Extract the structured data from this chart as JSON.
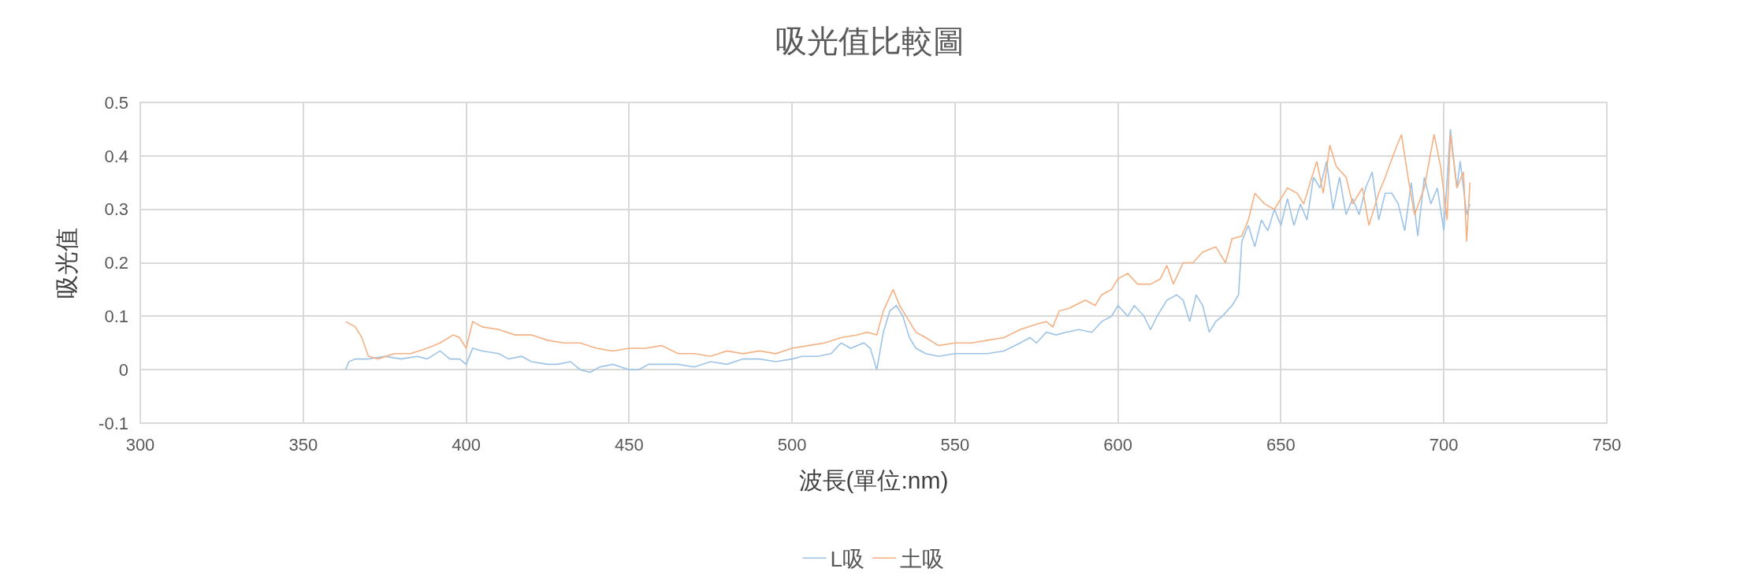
{
  "chart_data": {
    "type": "line",
    "title": "吸光值比較圖",
    "xlabel": "波長(單位:nm)",
    "ylabel": "吸光值",
    "xlim": [
      300,
      750
    ],
    "xticks": [
      300,
      350,
      400,
      450,
      500,
      550,
      600,
      650,
      700,
      750
    ],
    "ylim": [
      -0.1,
      0.5
    ],
    "yticks": [
      -0.1,
      0,
      0.1,
      0.2,
      0.3,
      0.4,
      0.5
    ],
    "grid": true,
    "legend": "bottom",
    "marker": "none",
    "line_style": "solid",
    "series": [
      {
        "name": "L吸",
        "color": "#9dc3e6",
        "x": [
          363,
          364,
          366,
          370,
          375,
          380,
          385,
          388,
          392,
          395,
          398,
          400,
          402,
          405,
          410,
          413,
          417,
          420,
          425,
          428,
          432,
          435,
          438,
          441,
          445,
          450,
          453,
          456,
          460,
          465,
          470,
          475,
          480,
          485,
          490,
          495,
          500,
          503,
          508,
          512,
          515,
          518,
          522,
          524,
          526,
          528,
          530,
          532,
          534,
          536,
          538,
          541,
          545,
          550,
          555,
          560,
          565,
          570,
          573,
          575,
          578,
          581,
          584,
          588,
          592,
          595,
          598,
          600,
          603,
          605,
          608,
          610,
          612,
          615,
          618,
          620,
          622,
          624,
          626,
          628,
          630,
          632,
          635,
          637,
          638,
          640,
          642,
          644,
          646,
          648,
          650,
          652,
          654,
          656,
          658,
          660,
          662,
          664,
          666,
          668,
          670,
          672,
          674,
          676,
          678,
          680,
          682,
          684,
          686,
          688,
          690,
          692,
          694,
          696,
          698,
          700,
          702,
          704,
          705,
          707,
          708
        ],
        "values": [
          0,
          0.015,
          0.02,
          0.02,
          0.025,
          0.02,
          0.025,
          0.02,
          0.035,
          0.02,
          0.02,
          0.01,
          0.04,
          0.035,
          0.03,
          0.02,
          0.025,
          0.015,
          0.01,
          0.01,
          0.015,
          0,
          -0.005,
          0.005,
          0.01,
          0,
          0,
          0.01,
          0.01,
          0.01,
          0.005,
          0.015,
          0.01,
          0.02,
          0.02,
          0.015,
          0.02,
          0.025,
          0.025,
          0.03,
          0.05,
          0.04,
          0.05,
          0.04,
          0,
          0.07,
          0.11,
          0.12,
          0.1,
          0.06,
          0.04,
          0.03,
          0.025,
          0.03,
          0.03,
          0.03,
          0.035,
          0.05,
          0.06,
          0.05,
          0.07,
          0.065,
          0.07,
          0.075,
          0.07,
          0.09,
          0.1,
          0.12,
          0.1,
          0.12,
          0.1,
          0.075,
          0.1,
          0.13,
          0.14,
          0.13,
          0.09,
          0.14,
          0.12,
          0.07,
          0.09,
          0.1,
          0.12,
          0.14,
          0.24,
          0.27,
          0.23,
          0.28,
          0.26,
          0.3,
          0.27,
          0.32,
          0.27,
          0.31,
          0.28,
          0.36,
          0.34,
          0.39,
          0.3,
          0.36,
          0.29,
          0.32,
          0.29,
          0.34,
          0.37,
          0.28,
          0.33,
          0.33,
          0.31,
          0.26,
          0.35,
          0.25,
          0.36,
          0.31,
          0.34,
          0.26,
          0.45,
          0.34,
          0.39,
          0.29,
          0.31
        ]
      },
      {
        "name": "土吸",
        "color": "#f4b183",
        "x": [
          363,
          366,
          368,
          370,
          373,
          378,
          383,
          388,
          392,
          396,
          398,
          400,
          402,
          405,
          410,
          415,
          420,
          425,
          430,
          435,
          440,
          445,
          450,
          455,
          460,
          465,
          470,
          475,
          480,
          485,
          490,
          495,
          500,
          505,
          510,
          515,
          520,
          523,
          526,
          528,
          531,
          533,
          535,
          538,
          541,
          545,
          550,
          555,
          560,
          565,
          570,
          575,
          578,
          580,
          582,
          585,
          590,
          593,
          595,
          598,
          600,
          603,
          606,
          610,
          613,
          615,
          617,
          620,
          623,
          626,
          630,
          633,
          635,
          638,
          640,
          642,
          645,
          648,
          650,
          652,
          655,
          657,
          659,
          661,
          663,
          665,
          667,
          670,
          672,
          675,
          677,
          680,
          682,
          685,
          687,
          689,
          691,
          694,
          697,
          699,
          701,
          702,
          704,
          706,
          707,
          708
        ],
        "values": [
          0.09,
          0.08,
          0.06,
          0.025,
          0.02,
          0.03,
          0.03,
          0.04,
          0.05,
          0.065,
          0.06,
          0.04,
          0.09,
          0.08,
          0.075,
          0.065,
          0.065,
          0.055,
          0.05,
          0.05,
          0.04,
          0.035,
          0.04,
          0.04,
          0.045,
          0.03,
          0.03,
          0.025,
          0.035,
          0.03,
          0.035,
          0.03,
          0.04,
          0.045,
          0.05,
          0.06,
          0.065,
          0.07,
          0.065,
          0.11,
          0.15,
          0.12,
          0.1,
          0.07,
          0.06,
          0.045,
          0.05,
          0.05,
          0.055,
          0.06,
          0.075,
          0.085,
          0.09,
          0.08,
          0.11,
          0.115,
          0.13,
          0.12,
          0.14,
          0.15,
          0.17,
          0.18,
          0.16,
          0.16,
          0.17,
          0.195,
          0.16,
          0.2,
          0.2,
          0.22,
          0.23,
          0.2,
          0.245,
          0.25,
          0.28,
          0.33,
          0.31,
          0.3,
          0.32,
          0.34,
          0.33,
          0.31,
          0.35,
          0.39,
          0.33,
          0.42,
          0.38,
          0.36,
          0.31,
          0.34,
          0.27,
          0.33,
          0.36,
          0.41,
          0.44,
          0.36,
          0.29,
          0.34,
          0.44,
          0.38,
          0.28,
          0.44,
          0.34,
          0.37,
          0.24,
          0.35
        ]
      }
    ]
  }
}
